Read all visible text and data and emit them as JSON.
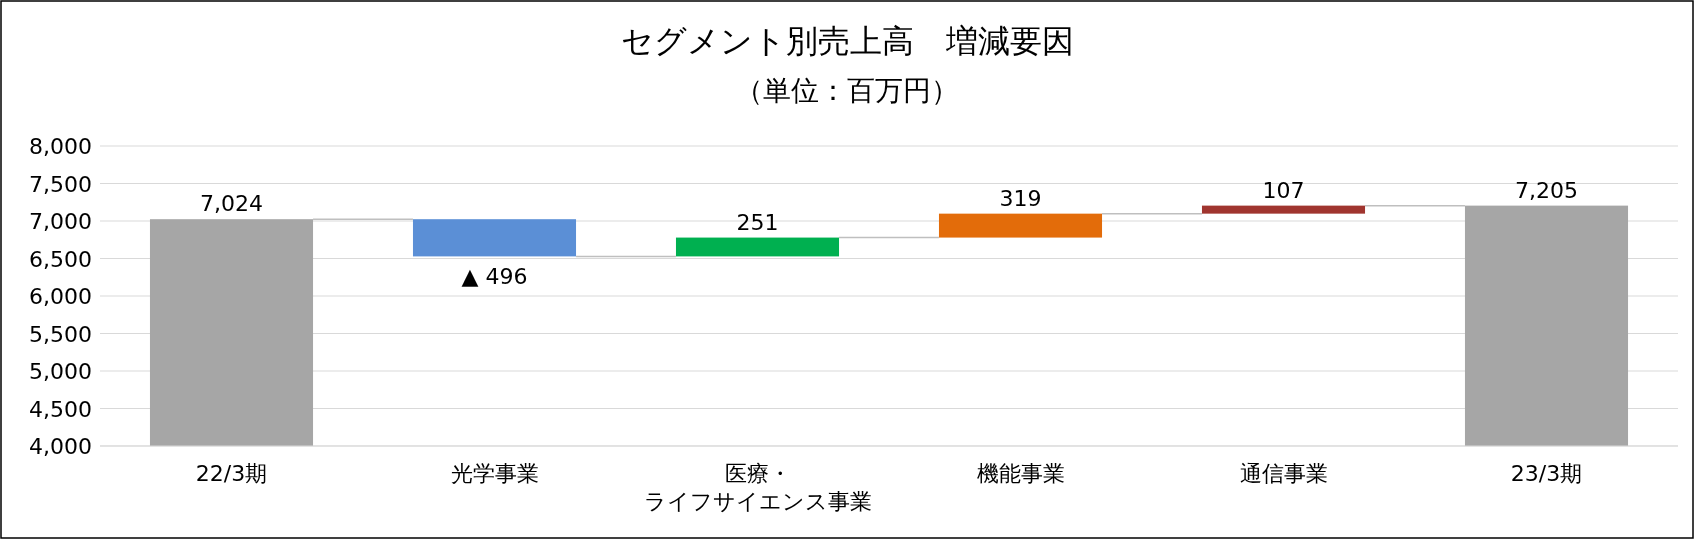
{
  "chart_data": {
    "type": "bar",
    "title": "セグメント別売上高　増減要因",
    "subtitle": "（単位：百万円）",
    "categories": [
      "22/3期",
      "光学事業",
      "医療・ライフサイエンス事業",
      "機能事業",
      "通信事業",
      "23/3期"
    ],
    "values": [
      7024,
      -496,
      251,
      319,
      107,
      7205
    ],
    "base": [
      null,
      7024,
      6528,
      6779,
      7098,
      null
    ],
    "colors": [
      "#a6a6a6",
      "#5b8fd6",
      "#00b050",
      "#e36c0a",
      "#a0352f",
      "#a6a6a6"
    ],
    "value_labels": [
      "7,024",
      "▲ 496",
      "251",
      "319",
      "107",
      "7,205"
    ],
    "ylim": [
      4000,
      8000
    ],
    "yticks": [
      {
        "value": 4000,
        "label": "4,000"
      },
      {
        "value": 4500,
        "label": "4,500"
      },
      {
        "value": 5000,
        "label": "5,000"
      },
      {
        "value": 5500,
        "label": "5,500"
      },
      {
        "value": 6000,
        "label": "6,000"
      },
      {
        "value": 6500,
        "label": "6,500"
      },
      {
        "value": 7000,
        "label": "7,000"
      },
      {
        "value": 7500,
        "label": "7,500"
      },
      {
        "value": 8000,
        "label": "8,000"
      }
    ],
    "grid": "y"
  }
}
